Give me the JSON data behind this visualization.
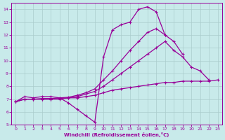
{
  "xlabel": "Windchill (Refroidissement éolien,°C)",
  "xlim": [
    -0.5,
    23.5
  ],
  "ylim": [
    5,
    14.5
  ],
  "xticks": [
    0,
    1,
    2,
    3,
    4,
    5,
    6,
    7,
    8,
    9,
    10,
    11,
    12,
    13,
    14,
    15,
    16,
    17,
    18,
    19,
    20,
    21,
    22,
    23
  ],
  "yticks": [
    5,
    6,
    7,
    8,
    9,
    10,
    11,
    12,
    13,
    14
  ],
  "bg_color": "#c8eaea",
  "line_color": "#990099",
  "grid_color": "#aacccc",
  "line1_x": [
    0,
    1,
    2,
    3,
    4,
    5,
    6,
    7,
    8,
    9,
    10,
    11,
    12,
    13,
    14,
    15,
    16,
    17,
    18,
    19,
    20,
    21
  ],
  "line1_y": [
    6.8,
    7.2,
    7.1,
    7.2,
    7.2,
    7.1,
    6.7,
    6.2,
    5.7,
    5.2,
    10.3,
    12.4,
    12.8,
    13.0,
    14.0,
    14.2,
    13.8,
    12.0,
    null,
    null,
    null,
    null
  ],
  "line2_x": [
    0,
    1,
    2,
    3,
    4,
    5,
    6,
    7,
    8,
    9,
    10,
    11,
    12,
    13,
    14,
    15,
    16,
    17,
    18,
    19,
    20,
    21,
    22,
    23
  ],
  "line2_y": [
    6.8,
    7.0,
    7.0,
    7.0,
    7.0,
    7.0,
    7.1,
    7.1,
    7.2,
    7.3,
    7.5,
    7.7,
    7.8,
    7.9,
    8.0,
    8.1,
    8.2,
    8.3,
    8.3,
    8.4,
    8.4,
    8.4,
    8.4,
    8.5
  ],
  "line3_x": [
    0,
    1,
    2,
    3,
    4,
    5,
    6,
    7,
    8,
    9,
    10,
    11,
    12,
    13,
    14,
    15,
    16,
    17,
    18,
    19,
    20,
    21,
    22,
    23
  ],
  "line3_y": [
    6.8,
    7.0,
    7.0,
    7.0,
    7.0,
    7.05,
    7.1,
    7.2,
    7.4,
    7.6,
    8.0,
    8.5,
    9.0,
    9.5,
    10.0,
    10.5,
    11.0,
    11.5,
    10.8,
    10.3,
    9.5,
    9.2,
    8.5,
    null
  ],
  "line4_x": [
    0,
    1,
    2,
    3,
    4,
    5,
    6,
    7,
    8,
    9,
    10,
    11,
    12,
    13,
    14,
    15,
    16,
    17,
    18,
    19,
    20,
    21,
    22,
    23
  ],
  "line4_y": [
    6.8,
    7.0,
    7.0,
    7.05,
    7.05,
    7.1,
    7.15,
    7.3,
    7.5,
    7.8,
    8.5,
    9.2,
    10.0,
    10.8,
    11.5,
    12.2,
    12.5,
    12.0,
    11.5,
    10.5,
    null,
    null,
    null,
    null
  ]
}
